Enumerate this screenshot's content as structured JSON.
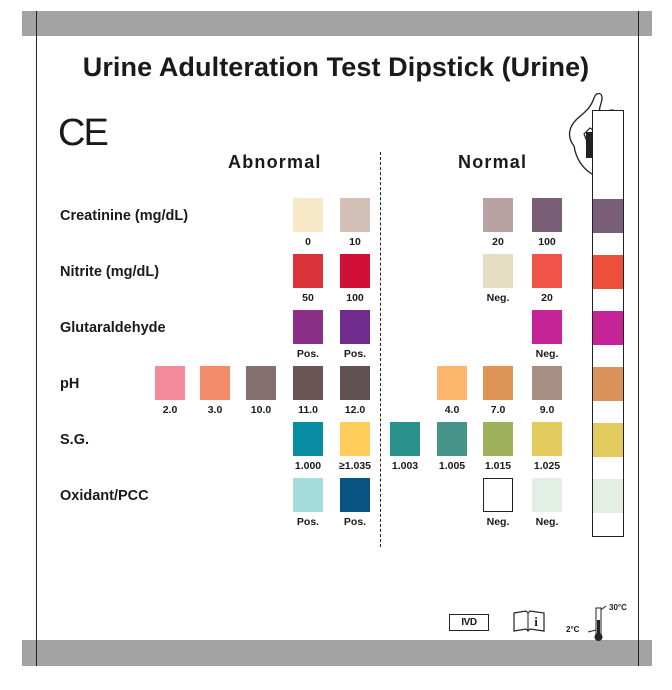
{
  "title": "Urine Adulteration Test Dipstick (Urine)",
  "ce_mark": "CE",
  "headings": {
    "abnormal": "Abnormal",
    "normal": "Normal"
  },
  "rows": [
    {
      "label": "Creatinine (mg/dL)",
      "swatches": [
        {
          "label": "0",
          "color": "#f7e9c8"
        },
        {
          "label": "10",
          "color": "#d2c0b6"
        },
        {
          "label": "20",
          "color": "#b9a2a2"
        },
        {
          "label": "100",
          "color": "#7a5e76"
        }
      ],
      "strip_color": "#7a5e76"
    },
    {
      "label": "Nitrite (mg/dL)",
      "swatches": [
        {
          "label": "50",
          "color": "#da3339"
        },
        {
          "label": "100",
          "color": "#d20f37"
        },
        {
          "label": "Neg.",
          "color": "#e5dec3"
        },
        {
          "label": "20",
          "color": "#f05348"
        }
      ],
      "strip_color": "#ee4f3d"
    },
    {
      "label": "Glutaraldehyde",
      "swatches": [
        {
          "label": "Pos.",
          "color": "#8b3089"
        },
        {
          "label": "Pos.",
          "color": "#702c8c"
        },
        {
          "label": "Neg.",
          "color": "#c42495"
        }
      ],
      "strip_color": "#c42495"
    },
    {
      "label": "pH",
      "swatches": [
        {
          "label": "2.0",
          "color": "#f38b9b"
        },
        {
          "label": "3.0",
          "color": "#f28b6c"
        },
        {
          "label": "10.0",
          "color": "#85706f"
        },
        {
          "label": "11.0",
          "color": "#6c5354"
        },
        {
          "label": "12.0",
          "color": "#625152"
        },
        {
          "label": "4.0",
          "color": "#fdb56d"
        },
        {
          "label": "7.0",
          "color": "#dd9556"
        },
        {
          "label": "9.0",
          "color": "#a78f84"
        }
      ],
      "strip_color": "#da935b"
    },
    {
      "label": "S.G.",
      "swatches": [
        {
          "label": "1.000",
          "color": "#088ca1"
        },
        {
          "label": "≥1.035",
          "color": "#ffcd5b"
        },
        {
          "label": "1.003",
          "color": "#2b918d"
        },
        {
          "label": "1.005",
          "color": "#46938a"
        },
        {
          "label": "1.015",
          "color": "#a0b15b"
        },
        {
          "label": "1.025",
          "color": "#e3cb5e"
        }
      ],
      "strip_color": "#e3cb5e"
    },
    {
      "label": "Oxidant/PCC",
      "swatches": [
        {
          "label": "Pos.",
          "color": "#a5dcdc"
        },
        {
          "label": "Pos.",
          "color": "#075481"
        },
        {
          "label": "Neg.",
          "color": "#ffffff"
        },
        {
          "label": "Neg.",
          "color": "#e3efe4"
        }
      ],
      "strip_color": "#e3efe4"
    }
  ],
  "footer": {
    "ivd": "IVD",
    "info_icon": "i",
    "temp_high": "30°C",
    "temp_low": "2°C"
  },
  "icons": [
    "hand-holding-strip-icon",
    "ivd-icon",
    "instructions-book-icon",
    "thermometer-icon"
  ]
}
